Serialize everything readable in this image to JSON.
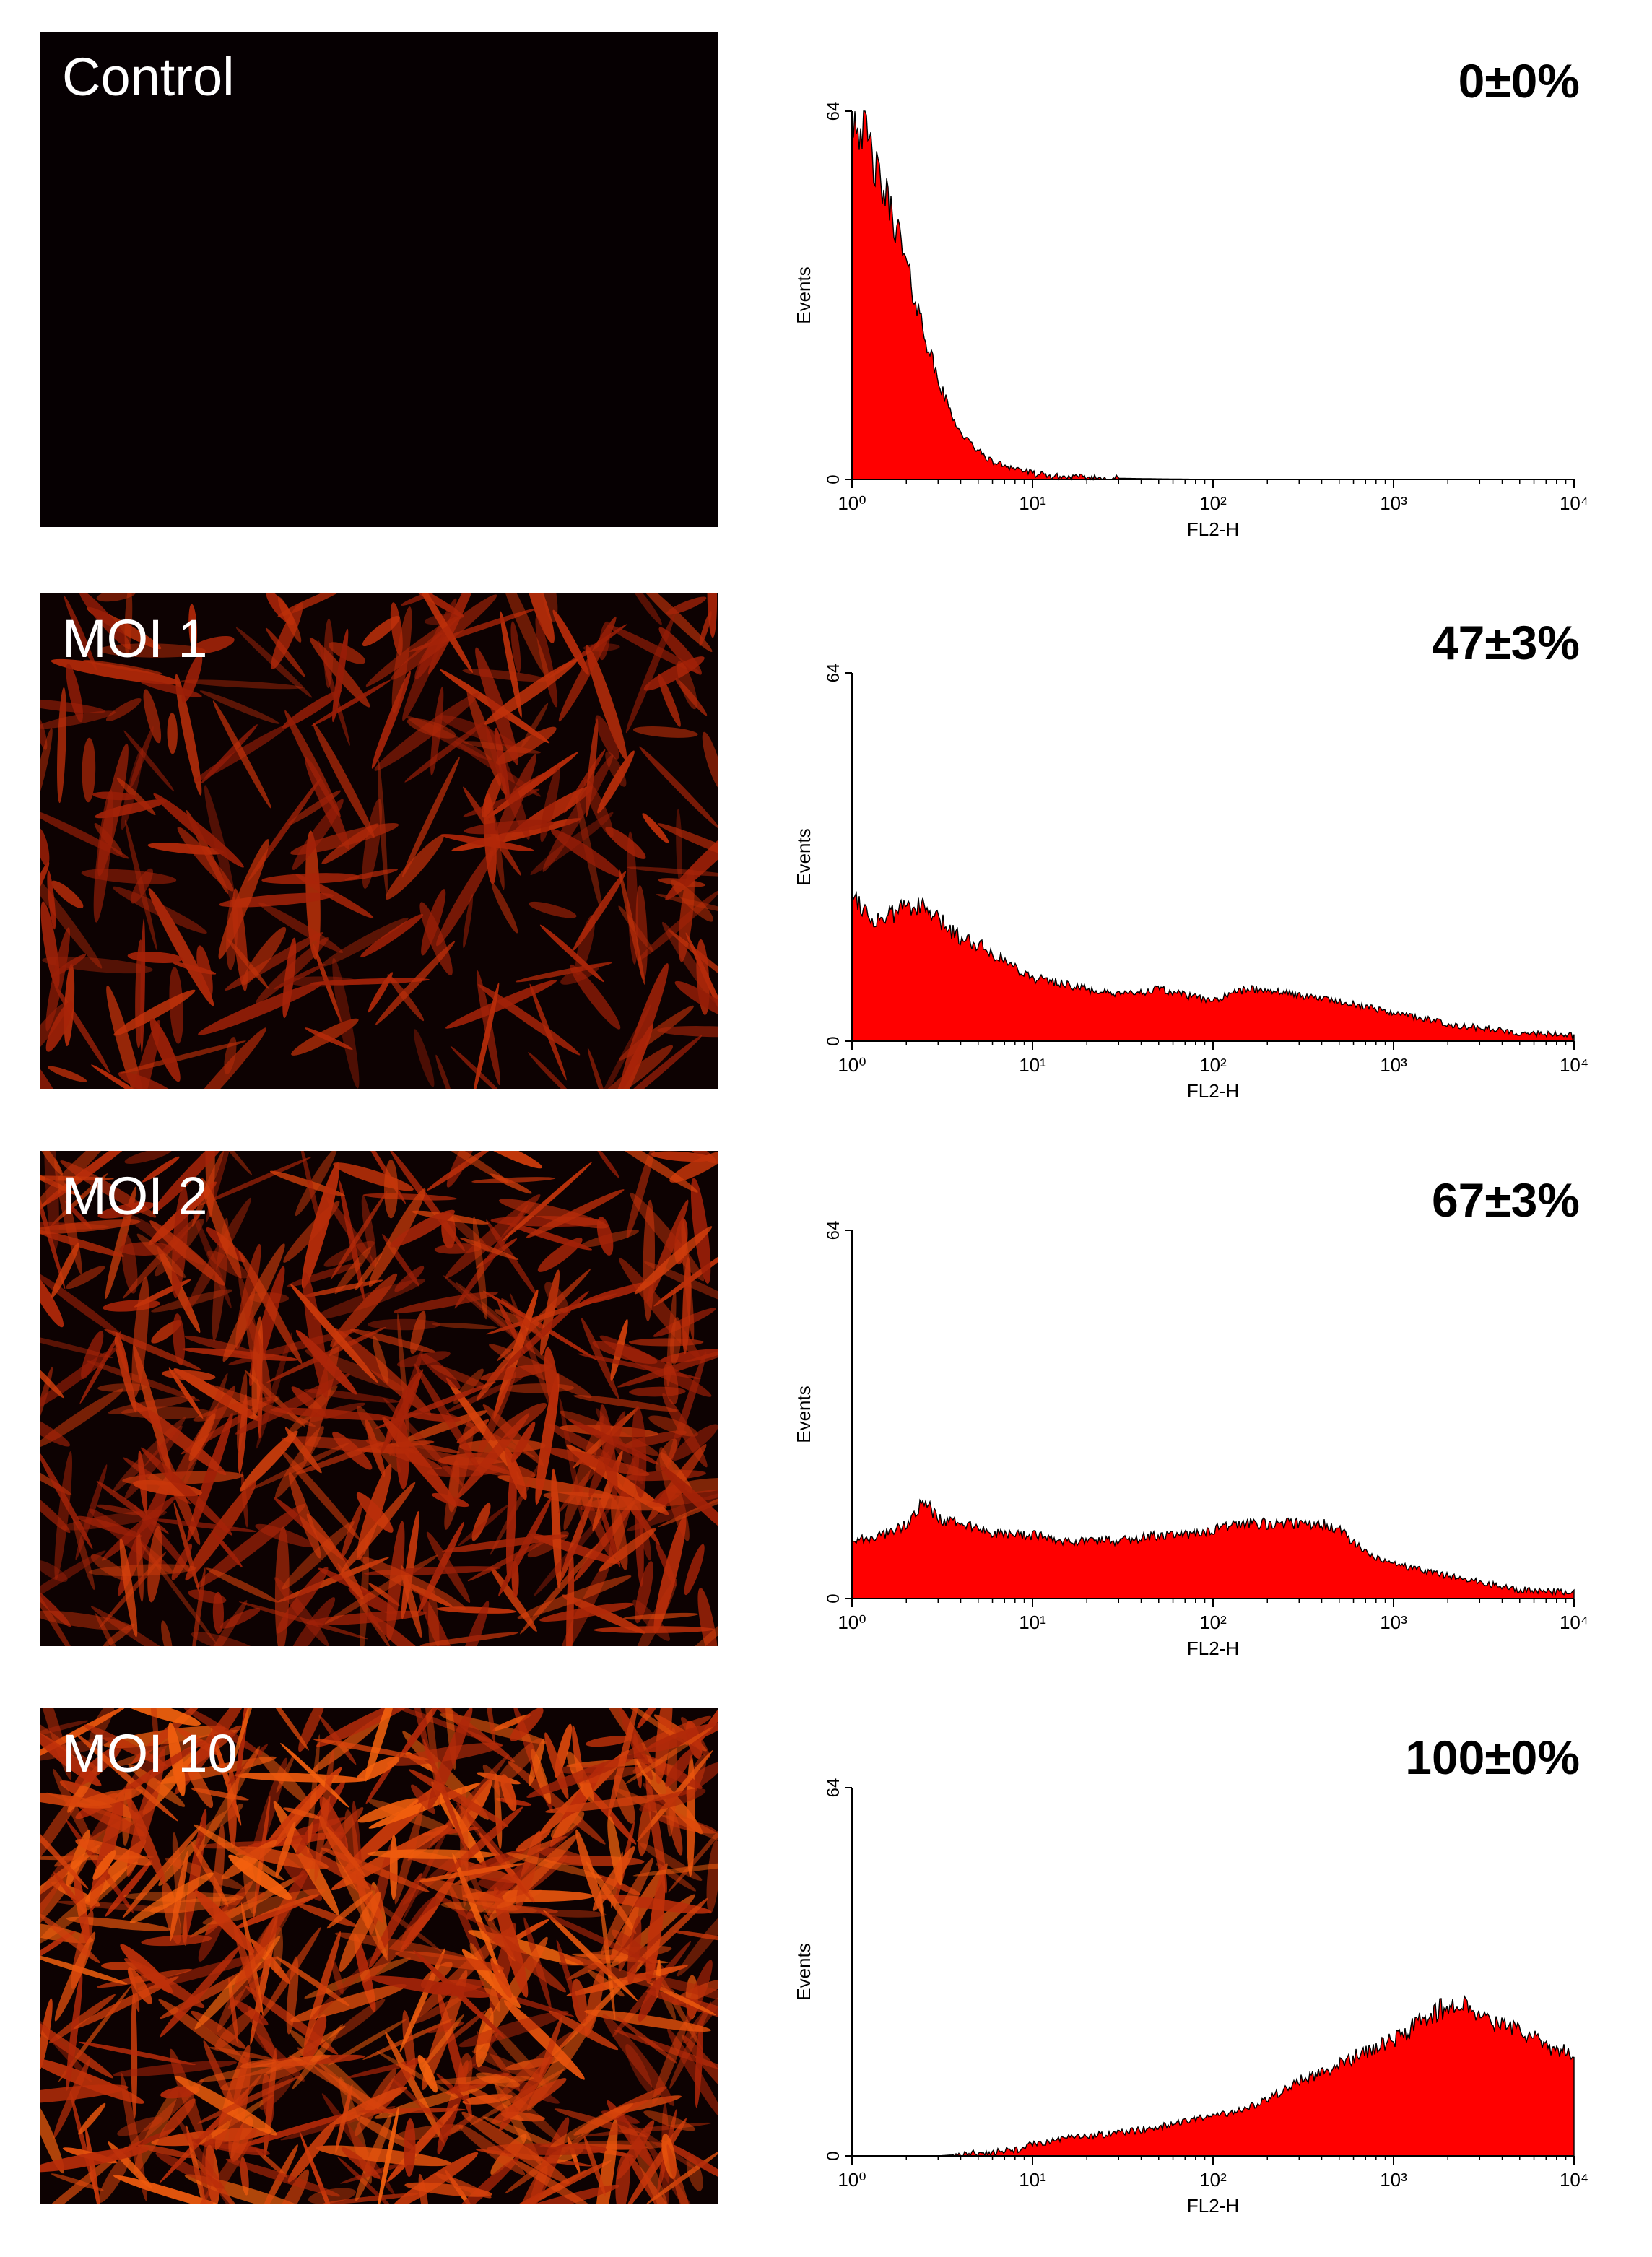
{
  "colors": {
    "fill": "#ff0000",
    "outline": "#000000",
    "background": "#ffffff"
  },
  "chart_data": [
    {
      "type": "area",
      "panel_label": "Control",
      "percent_label": "0±0%",
      "xlabel": "FL2-H",
      "ylabel": "Events",
      "x_scale": "log",
      "xlim": [
        1,
        10000
      ],
      "ylim": [
        0,
        64
      ],
      "x_tick_labels": [
        "10⁰",
        "10¹",
        "10²",
        "10³",
        "10⁴"
      ],
      "y_tick_labels": [
        "0",
        "64"
      ],
      "x": [
        1,
        1.2,
        1.4,
        1.6,
        1.8,
        2,
        2.3,
        2.6,
        3,
        3.5,
        4,
        5,
        6,
        7,
        8,
        9,
        10,
        12,
        15,
        20,
        30,
        50,
        100,
        1000,
        10000
      ],
      "values": [
        64,
        60,
        52,
        48,
        43,
        37,
        30,
        24,
        17,
        12,
        8,
        5,
        3,
        2.5,
        2,
        1.5,
        1,
        0.6,
        0.4,
        0.3,
        0.2,
        0.1,
        0,
        0,
        0
      ]
    },
    {
      "type": "area",
      "panel_label": "MOI 1",
      "percent_label": "47±3%",
      "xlabel": "FL2-H",
      "ylabel": "Events",
      "x_scale": "log",
      "xlim": [
        1,
        10000
      ],
      "ylim": [
        0,
        64
      ],
      "x_tick_labels": [
        "10⁰",
        "10¹",
        "10²",
        "10³",
        "10⁴"
      ],
      "y_tick_labels": [
        "0",
        "64"
      ],
      "x": [
        1,
        1.3,
        1.7,
        2,
        2.5,
        3,
        4,
        5,
        7,
        10,
        15,
        20,
        30,
        50,
        70,
        100,
        150,
        200,
        300,
        500,
        700,
        1000,
        2000,
        5000,
        10000
      ],
      "values": [
        26,
        21,
        22,
        24,
        23,
        21,
        18,
        17,
        14,
        11,
        10,
        9,
        8,
        9,
        8,
        7,
        9,
        9,
        8,
        7,
        6,
        5,
        3,
        1.5,
        1
      ]
    },
    {
      "type": "area",
      "panel_label": "MOI 2",
      "percent_label": "67±3%",
      "xlabel": "FL2-H",
      "ylabel": "Events",
      "x_scale": "log",
      "xlim": [
        1,
        10000
      ],
      "ylim": [
        0,
        64
      ],
      "x_tick_labels": [
        "10⁰",
        "10¹",
        "10²",
        "10³",
        "10⁴"
      ],
      "y_tick_labels": [
        "0",
        "64"
      ],
      "x": [
        1,
        1.5,
        2,
        2.5,
        3,
        4,
        5,
        7,
        10,
        15,
        20,
        30,
        50,
        70,
        100,
        150,
        200,
        300,
        400,
        500,
        700,
        1000,
        2000,
        5000,
        10000
      ],
      "values": [
        10,
        11,
        13,
        17,
        14,
        13,
        12,
        11,
        11,
        10,
        10,
        10,
        11,
        11,
        12,
        13,
        13,
        13,
        13,
        12,
        8,
        6,
        4,
        1.5,
        1
      ]
    },
    {
      "type": "area",
      "panel_label": "MOI 10",
      "percent_label": "100±0%",
      "xlabel": "FL2-H",
      "ylabel": "Events",
      "x_scale": "log",
      "xlim": [
        1,
        10000
      ],
      "ylim": [
        0,
        64
      ],
      "x_tick_labels": [
        "10⁰",
        "10¹",
        "10²",
        "10³",
        "10⁴"
      ],
      "y_tick_labels": [
        "0",
        "64"
      ],
      "x": [
        1,
        3,
        5,
        8,
        10,
        15,
        20,
        30,
        50,
        70,
        100,
        150,
        200,
        300,
        500,
        700,
        1000,
        1500,
        2000,
        2500,
        3000,
        5000,
        7000,
        9000,
        10000
      ],
      "values": [
        0,
        0,
        0.5,
        1,
        2,
        3,
        3.5,
        4,
        5,
        6,
        7,
        8,
        10,
        13,
        16,
        18,
        20,
        24,
        26,
        27,
        24,
        22,
        19,
        18,
        18
      ]
    }
  ]
}
